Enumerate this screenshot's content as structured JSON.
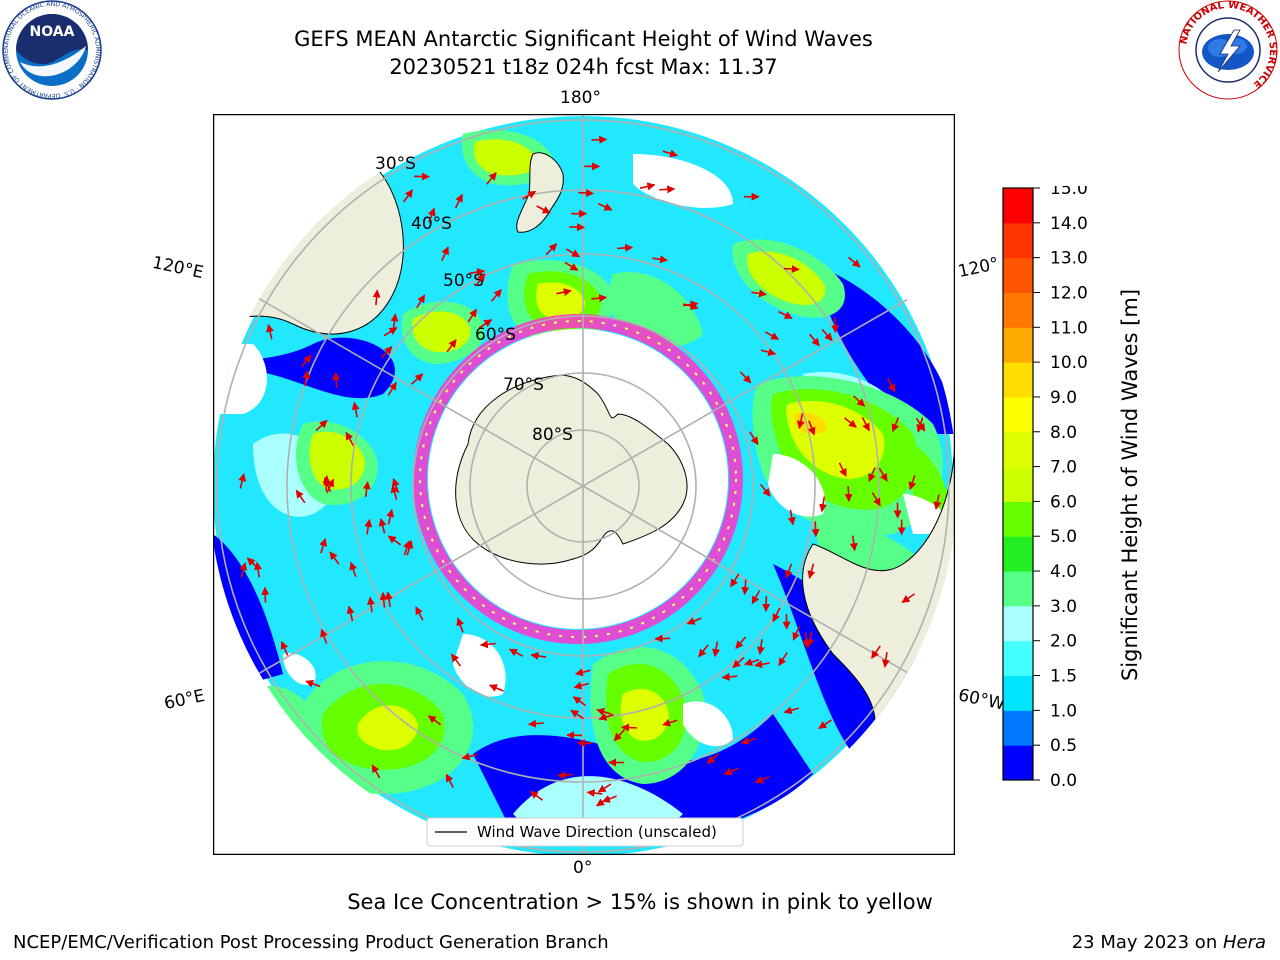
{
  "header": {
    "title_line1": "GEFS MEAN Antarctic Significant Height of Wind Waves",
    "title_line2": "20230521 t18z 024h fcst   Max: 11.37"
  },
  "logos": {
    "left": {
      "name": "noaa-logo",
      "text": "NOAA",
      "ring_text": "NATIONAL OCEANIC AND ATMOSPHERIC ADMINISTRATION · U.S. DEPARTMENT OF COMMERCE"
    },
    "right": {
      "name": "nws-logo",
      "ring_text": "NATIONAL WEATHER SERVICE"
    }
  },
  "map": {
    "projection": "south-polar-stereographic",
    "longitude_labels": [
      "180°",
      "120°E",
      "120°",
      "60°E",
      "60°W",
      "0°"
    ],
    "latitude_labels": [
      "30°S",
      "40°S",
      "50°S",
      "60°S",
      "70°S",
      "80°S"
    ],
    "legend_label": "Wind Wave Direction (unscaled)",
    "colors": {
      "land": "#eeeedd",
      "grid": "#b0b0b0",
      "vector": "#e00000",
      "ice_edge": "#ff33cc"
    }
  },
  "colorbar": {
    "label": "Significant Height of Wind Waves [m]",
    "tick_labels": [
      "0.0",
      "0.5",
      "1.0",
      "1.5",
      "2.0",
      "3.0",
      "4.0",
      "5.0",
      "6.0",
      "7.0",
      "8.0",
      "9.0",
      "10.0",
      "11.0",
      "12.0",
      "13.0",
      "14.0",
      "15.0"
    ],
    "colors": [
      "#0000ff",
      "#0077ff",
      "#00e5ff",
      "#44ffff",
      "#aaffff",
      "#55ff88",
      "#22ee22",
      "#66ff00",
      "#ccff00",
      "#ddff00",
      "#ffff00",
      "#ffdd00",
      "#ffaa00",
      "#ff7700",
      "#ff5500",
      "#ff3300",
      "#ff0000"
    ]
  },
  "footer": {
    "note": "Sea Ice Concentration > 15% is shown in pink to yellow",
    "credit_left": "NCEP/EMC/Verification Post Processing Product Generation Branch",
    "date": "23 May 2023 on ",
    "host": "Hera"
  }
}
